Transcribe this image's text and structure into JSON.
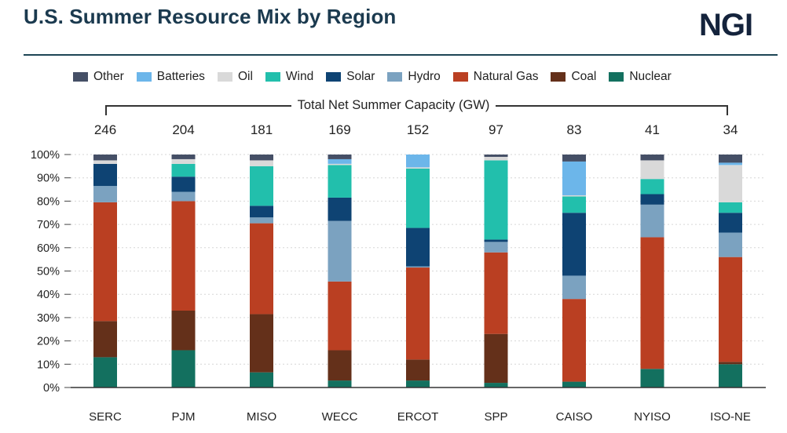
{
  "header": {
    "title": "U.S. Summer Resource Mix by Region",
    "logo": "NGI"
  },
  "legend": [
    {
      "label": "Other",
      "color": "#454f66"
    },
    {
      "label": "Batteries",
      "color": "#6cb6ea"
    },
    {
      "label": "Oil",
      "color": "#d9d9d9"
    },
    {
      "label": "Wind",
      "color": "#22bfac"
    },
    {
      "label": "Solar",
      "color": "#0e4373"
    },
    {
      "label": "Hydro",
      "color": "#7ba2c0"
    },
    {
      "label": "Natural Gas",
      "color": "#ba3f22"
    },
    {
      "label": "Coal",
      "color": "#64301a"
    },
    {
      "label": "Nuclear",
      "color": "#13705f"
    }
  ],
  "chart_data": {
    "type": "bar",
    "stacked": true,
    "capacity_title": "Total Net Summer Capacity (GW)",
    "categories": [
      "SERC",
      "PJM",
      "MISO",
      "WECC",
      "ERCOT",
      "SPP",
      "CAISO",
      "NYISO",
      "ISO-NE"
    ],
    "capacity_gw": [
      "246",
      "204",
      "181",
      "169",
      "152",
      "97",
      "83",
      "41",
      "34"
    ],
    "y_ticks": [
      "0%",
      "10%",
      "20%",
      "30%",
      "40%",
      "50%",
      "60%",
      "70%",
      "80%",
      "90%",
      "100%"
    ],
    "ylim": [
      0,
      100
    ],
    "series": [
      {
        "name": "Nuclear",
        "color": "#13705f",
        "values": [
          13,
          16,
          6.5,
          3,
          3,
          2,
          2.5,
          8,
          10
        ]
      },
      {
        "name": "Coal",
        "color": "#64301a",
        "values": [
          15.5,
          17,
          25,
          13,
          9,
          21,
          0,
          0,
          1
        ]
      },
      {
        "name": "Natural Gas",
        "color": "#ba3f22",
        "values": [
          51,
          47,
          39,
          29.5,
          39.5,
          35,
          35.5,
          56.5,
          45
        ]
      },
      {
        "name": "Hydro",
        "color": "#7ba2c0",
        "values": [
          7,
          4,
          2.5,
          26,
          0.5,
          4.5,
          10,
          14,
          10.5
        ]
      },
      {
        "name": "Solar",
        "color": "#0e4373",
        "values": [
          9.5,
          6.5,
          5,
          10,
          16.5,
          1,
          27,
          4.5,
          8.5
        ]
      },
      {
        "name": "Wind",
        "color": "#22bfac",
        "values": [
          0,
          5.5,
          17,
          14,
          25.5,
          34,
          7,
          6.5,
          4.5
        ]
      },
      {
        "name": "Oil",
        "color": "#d9d9d9",
        "values": [
          1.5,
          2,
          2.5,
          0.5,
          0.5,
          1.5,
          0.5,
          8,
          16
        ]
      },
      {
        "name": "Batteries",
        "color": "#6cb6ea",
        "values": [
          0,
          0,
          0,
          2,
          5.5,
          0,
          14.5,
          0,
          1
        ]
      },
      {
        "name": "Other",
        "color": "#454f66",
        "values": [
          2.5,
          2,
          2.5,
          2,
          0,
          1,
          3,
          2.5,
          3.5
        ]
      }
    ]
  }
}
